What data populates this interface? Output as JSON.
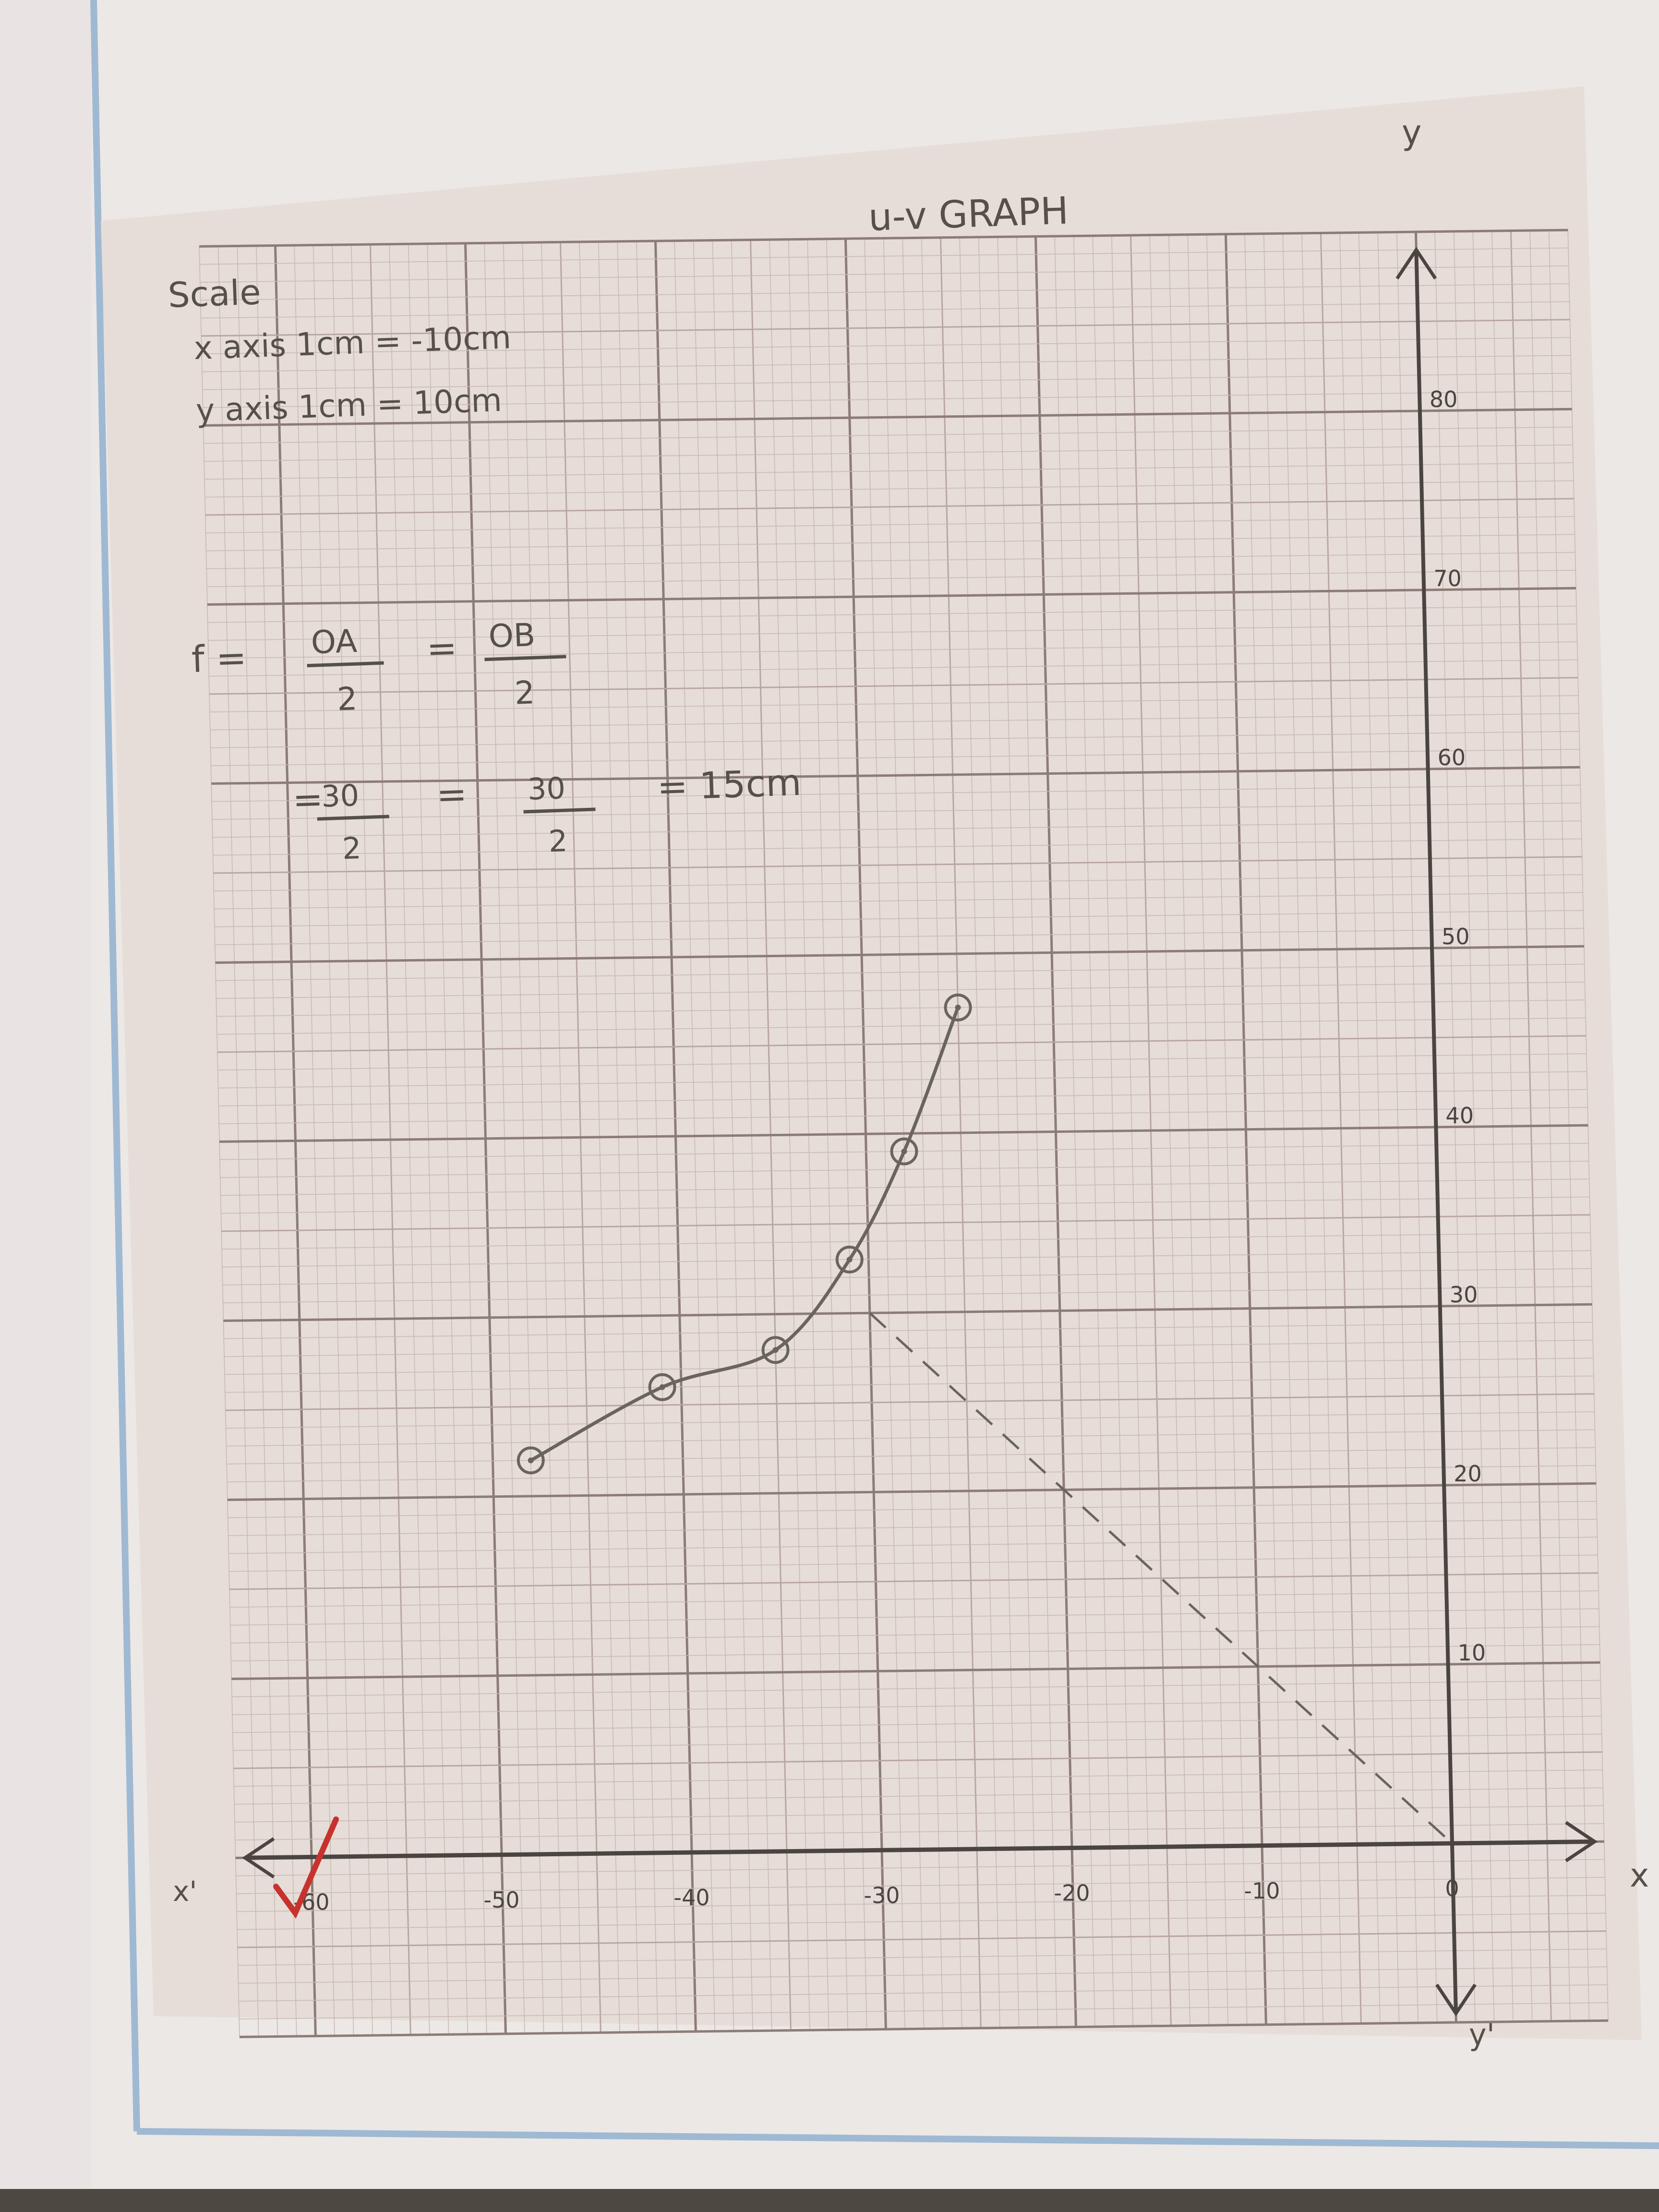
{
  "chart_data": {
    "type": "scatter",
    "title": "u-v GRAPH",
    "scale_note": {
      "heading": "Scale",
      "x_line": "x axis 1cm = -10cm",
      "y_line": "y axis 1cm = 10cm"
    },
    "working": {
      "line1_prefix": "f =",
      "line1_frac1_num": "OA",
      "line1_frac1_den": "2",
      "line1_eq": "=",
      "line1_frac2_num": "OB",
      "line1_frac2_den": "2",
      "line2_prefix": "=",
      "line2_frac1_num": "30",
      "line2_frac1_den": "2",
      "line2_eq": "=",
      "line2_frac2_num": "30",
      "line2_frac2_den": "2",
      "line2_result": "= 15cm"
    },
    "axis_labels": {
      "x_pos": "x",
      "x_neg": "x'",
      "y_pos": "y",
      "y_neg": "y'"
    },
    "x_tick_labels": [
      "-60",
      "-50",
      "-40",
      "-30",
      "-20",
      "-10",
      "0"
    ],
    "y_tick_labels": [
      "10",
      "20",
      "30",
      "40",
      "50",
      "60",
      "70",
      "80"
    ],
    "xlim": [
      -64,
      8
    ],
    "ylim": [
      -10,
      90
    ],
    "grid": true,
    "series": [
      {
        "type": "scatter+curve",
        "points": [
          {
            "x": -48,
            "y": 22
          },
          {
            "x": -41,
            "y": 26
          },
          {
            "x": -35,
            "y": 28
          },
          {
            "x": -31,
            "y": 33
          },
          {
            "x": -28,
            "y": 39
          },
          {
            "x": -25,
            "y": 47
          }
        ]
      },
      {
        "type": "dashed-line",
        "points": [
          {
            "x": -30,
            "y": 30
          },
          {
            "x": 0,
            "y": 0
          }
        ]
      }
    ],
    "annotations": {
      "check_mark_color": "#c8322d"
    }
  },
  "colors": {
    "paper": "#e6ddd8",
    "grid_minor": "#c9b9b3",
    "grid_mid": "#b9a6a0",
    "grid_major": "#8d7c76",
    "ink": "#4a4541",
    "pencil": "#6a645e",
    "page_border": "#9fb9d3"
  }
}
